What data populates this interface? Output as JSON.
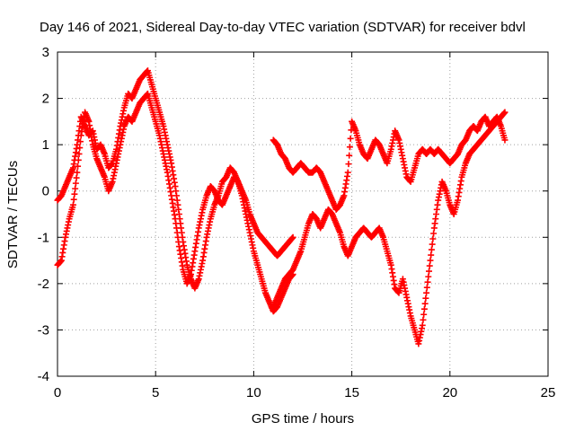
{
  "chart_data": {
    "type": "scatter",
    "title": "Day 146 of 2021, Sidereal Day-to-day VTEC variation (SDTVAR) for receiver bdvl",
    "xlabel": "GPS time / hours",
    "ylabel": "SDTVAR / TECUs",
    "xlim": [
      0,
      25
    ],
    "ylim": [
      -4,
      3
    ],
    "xticks": [
      "0",
      "5",
      "10",
      "15",
      "20",
      "25"
    ],
    "yticks": [
      "-4",
      "-3",
      "-2",
      "-1",
      "0",
      "1",
      "2",
      "3"
    ],
    "grid": true,
    "marker": "plus",
    "color": "#ff0000",
    "series": [
      {
        "x": [
          0.0,
          0.2,
          0.4,
          0.6,
          0.8,
          1.0,
          1.2,
          1.4,
          1.6,
          1.8,
          2.0,
          2.2,
          2.4,
          2.6,
          2.8,
          3.0,
          3.2,
          3.4,
          3.6,
          3.8,
          4.0,
          4.2,
          4.4,
          4.6,
          4.8,
          5.0,
          5.2,
          5.4,
          5.6,
          5.8,
          6.0,
          6.2,
          6.4,
          6.6,
          6.8,
          7.0,
          7.2,
          7.4,
          7.6,
          7.8,
          8.0,
          8.2,
          8.4,
          8.6,
          8.8,
          9.0,
          9.2,
          9.4,
          9.6,
          9.8,
          10.0,
          10.2,
          10.4,
          10.6,
          10.8,
          11.0,
          11.2,
          11.4,
          11.6,
          11.8,
          12.0
        ],
        "y": [
          -0.2,
          -0.1,
          0.1,
          0.3,
          0.5,
          1.0,
          1.6,
          1.4,
          1.2,
          1.3,
          0.9,
          1.0,
          0.8,
          0.5,
          0.6,
          0.9,
          1.4,
          1.8,
          2.1,
          2.0,
          2.2,
          2.4,
          2.5,
          2.6,
          2.3,
          2.0,
          1.7,
          1.4,
          1.0,
          0.6,
          0.1,
          -0.5,
          -1.1,
          -1.6,
          -1.9,
          -2.1,
          -1.9,
          -1.5,
          -1.0,
          -0.6,
          -0.3,
          -0.1,
          0.2,
          0.3,
          0.5,
          0.4,
          0.2,
          0.0,
          -0.2,
          -0.5,
          -0.7,
          -0.9,
          -1.0,
          -1.1,
          -1.2,
          -1.3,
          -1.4,
          -1.3,
          -1.2,
          -1.1,
          -1.0
        ]
      },
      {
        "x": [
          0.0,
          0.2,
          0.4,
          0.6,
          0.8,
          1.0,
          1.2,
          1.4,
          1.6,
          1.8,
          2.0,
          2.2,
          2.4,
          2.6,
          2.8,
          3.0,
          3.2,
          3.4,
          3.6,
          3.8,
          4.0,
          4.2,
          4.4,
          4.6,
          4.8,
          5.0,
          5.2,
          5.4,
          5.6,
          5.8,
          6.0,
          6.2,
          6.4,
          6.6,
          6.8,
          7.0,
          7.2,
          7.4,
          7.6,
          7.8,
          8.0,
          8.2,
          8.4,
          8.6,
          8.8,
          9.0,
          9.2,
          9.4,
          9.6,
          9.8,
          10.0,
          10.2,
          10.4,
          10.6,
          10.8,
          11.0,
          11.2,
          11.4,
          11.6,
          11.8,
          12.0
        ],
        "y": [
          -1.6,
          -1.5,
          -1.0,
          -0.6,
          -0.3,
          0.4,
          1.2,
          1.7,
          1.5,
          1.0,
          0.7,
          0.5,
          0.3,
          0.0,
          0.2,
          0.6,
          1.0,
          1.4,
          1.6,
          1.5,
          1.7,
          1.9,
          2.0,
          2.1,
          1.8,
          1.5,
          1.2,
          0.8,
          0.4,
          -0.1,
          -0.6,
          -1.2,
          -1.7,
          -2.0,
          -1.8,
          -1.3,
          -0.8,
          -0.4,
          -0.1,
          0.1,
          0.0,
          -0.2,
          -0.3,
          -0.1,
          0.1,
          0.3,
          0.2,
          -0.1,
          -0.5,
          -0.9,
          -1.3,
          -1.6,
          -1.9,
          -2.2,
          -2.4,
          -2.6,
          -2.5,
          -2.3,
          -2.1,
          -1.9,
          -1.8
        ]
      },
      {
        "x": [
          11.0,
          11.2,
          11.4,
          11.6,
          11.8,
          12.0,
          12.2,
          12.4,
          12.6,
          12.8,
          13.0,
          13.2,
          13.4,
          13.6,
          13.8,
          14.0,
          14.2,
          14.4,
          14.6,
          14.8,
          15.0,
          15.2,
          15.4,
          15.6,
          15.8,
          16.0,
          16.2,
          16.4,
          16.6,
          16.8,
          17.0,
          17.2,
          17.4,
          17.6,
          17.8,
          18.0,
          18.2,
          18.4,
          18.6,
          18.8,
          19.0,
          19.2,
          19.4,
          19.6,
          19.8,
          20.0,
          20.2,
          20.4,
          20.6,
          20.8,
          21.0,
          21.2,
          21.4,
          21.6,
          21.8,
          22.0,
          22.2,
          22.4,
          22.6,
          22.8
        ],
        "y": [
          1.1,
          1.0,
          0.8,
          0.7,
          0.5,
          0.4,
          0.5,
          0.6,
          0.5,
          0.4,
          0.4,
          0.5,
          0.4,
          0.2,
          0.0,
          -0.2,
          -0.4,
          -0.3,
          -0.1,
          0.4,
          1.5,
          1.3,
          1.0,
          0.8,
          0.7,
          0.9,
          1.1,
          1.0,
          0.8,
          0.6,
          0.9,
          1.3,
          1.1,
          0.7,
          0.3,
          0.2,
          0.5,
          0.8,
          0.9,
          0.8,
          0.9,
          0.8,
          0.9,
          0.8,
          0.7,
          0.6,
          0.7,
          0.8,
          1.0,
          1.1,
          1.3,
          1.4,
          1.3,
          1.5,
          1.6,
          1.4,
          1.5,
          1.6,
          1.4,
          1.1
        ]
      },
      {
        "x": [
          11.0,
          11.2,
          11.4,
          11.6,
          11.8,
          12.0,
          12.2,
          12.4,
          12.6,
          12.8,
          13.0,
          13.2,
          13.4,
          13.6,
          13.8,
          14.0,
          14.2,
          14.4,
          14.6,
          14.8,
          15.0,
          15.2,
          15.4,
          15.6,
          15.8,
          16.0,
          16.2,
          16.4,
          16.6,
          16.8,
          17.0,
          17.2,
          17.4,
          17.6,
          17.8,
          18.0,
          18.2,
          18.4,
          18.6,
          18.8,
          19.0,
          19.2,
          19.4,
          19.6,
          19.8,
          20.0,
          20.2,
          20.4,
          20.6,
          20.8,
          21.0,
          21.2,
          21.4,
          21.6,
          21.8,
          22.0,
          22.2,
          22.4,
          22.6,
          22.8
        ],
        "y": [
          -2.5,
          -2.3,
          -2.1,
          -1.9,
          -1.8,
          -1.7,
          -1.5,
          -1.3,
          -1.0,
          -0.7,
          -0.5,
          -0.6,
          -0.8,
          -0.6,
          -0.4,
          -0.5,
          -0.7,
          -0.9,
          -1.2,
          -1.4,
          -1.2,
          -1.0,
          -0.9,
          -0.8,
          -0.9,
          -1.0,
          -0.9,
          -0.8,
          -1.0,
          -1.3,
          -1.6,
          -2.1,
          -2.2,
          -1.9,
          -2.3,
          -2.7,
          -3.0,
          -3.3,
          -2.9,
          -2.2,
          -1.5,
          -0.8,
          -0.2,
          0.2,
          0.0,
          -0.3,
          -0.5,
          -0.2,
          0.3,
          0.6,
          0.8,
          0.9,
          1.0,
          1.1,
          1.2,
          1.3,
          1.4,
          1.5,
          1.6,
          1.7
        ]
      }
    ]
  }
}
